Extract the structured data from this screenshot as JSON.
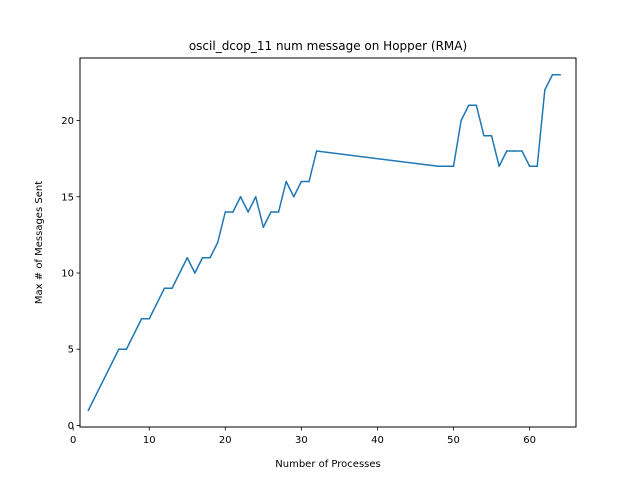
{
  "chart_data": {
    "type": "line",
    "title": "oscil_dcop_11 num message on Hopper (RMA)",
    "xlabel": "Number of Processes",
    "ylabel": "Max # of Messages Sent",
    "xlim": [
      0.9,
      66.1
    ],
    "ylim": [
      -0.1,
      24.1
    ],
    "xticks": [
      0,
      10,
      20,
      30,
      40,
      50,
      60
    ],
    "yticks": [
      0,
      5,
      10,
      15,
      20
    ],
    "grid": false,
    "legend": "none",
    "series": [
      {
        "color": "#1f77b4",
        "points": [
          [
            2,
            1
          ],
          [
            6,
            5
          ],
          [
            7,
            5
          ],
          [
            9,
            7
          ],
          [
            10,
            7
          ],
          [
            12,
            9
          ],
          [
            13,
            9
          ],
          [
            15,
            11
          ],
          [
            16,
            10
          ],
          [
            17,
            11
          ],
          [
            18,
            11
          ],
          [
            19,
            12
          ],
          [
            20,
            14
          ],
          [
            21,
            14
          ],
          [
            22,
            15
          ],
          [
            23,
            14
          ],
          [
            24,
            15
          ],
          [
            25,
            13
          ],
          [
            26,
            14
          ],
          [
            27,
            14
          ],
          [
            28,
            16
          ],
          [
            29,
            15
          ],
          [
            30,
            16
          ],
          [
            31,
            16
          ],
          [
            32,
            18
          ],
          [
            48,
            17
          ],
          [
            50,
            17
          ],
          [
            51,
            20
          ],
          [
            52,
            21
          ],
          [
            53,
            21
          ],
          [
            54,
            19
          ],
          [
            55,
            19
          ],
          [
            56,
            17
          ],
          [
            57,
            18
          ],
          [
            58,
            18
          ],
          [
            59,
            18
          ],
          [
            60,
            17
          ],
          [
            61,
            17
          ],
          [
            62,
            22
          ],
          [
            63,
            23
          ],
          [
            64,
            23
          ]
        ]
      }
    ]
  }
}
